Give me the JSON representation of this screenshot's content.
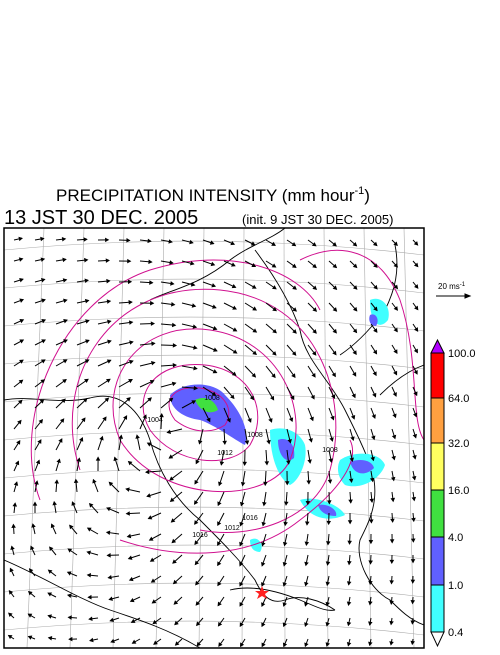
{
  "header": {
    "title_main": "PRECIPITATION INTENSITY (mm hour",
    "title_sup": "-1",
    "title_end": ")",
    "valid_time": "13 JST 30 DEC. 2005",
    "init_time": "(init. 9 JST 30 DEC. 2005)"
  },
  "wind_reference": {
    "label": "20 ms",
    "label_sup": "-1"
  },
  "colorbar": [
    {
      "label": "100.0",
      "color": "#ff0000"
    },
    {
      "label": "64.0",
      "color": "#ffa040"
    },
    {
      "label": "32.0",
      "color": "#ffff60"
    },
    {
      "label": "16.0",
      "color": "#40e040"
    },
    {
      "label": "4.0",
      "color": "#6060ff"
    },
    {
      "label": "1.0",
      "color": "#40ffff"
    },
    {
      "label": "0.4",
      "color": "#ffffff"
    }
  ],
  "isobar_labels": [
    "1008",
    "1004",
    "1012",
    "1008",
    "1008",
    "1016",
    "1012",
    "1016"
  ]
}
